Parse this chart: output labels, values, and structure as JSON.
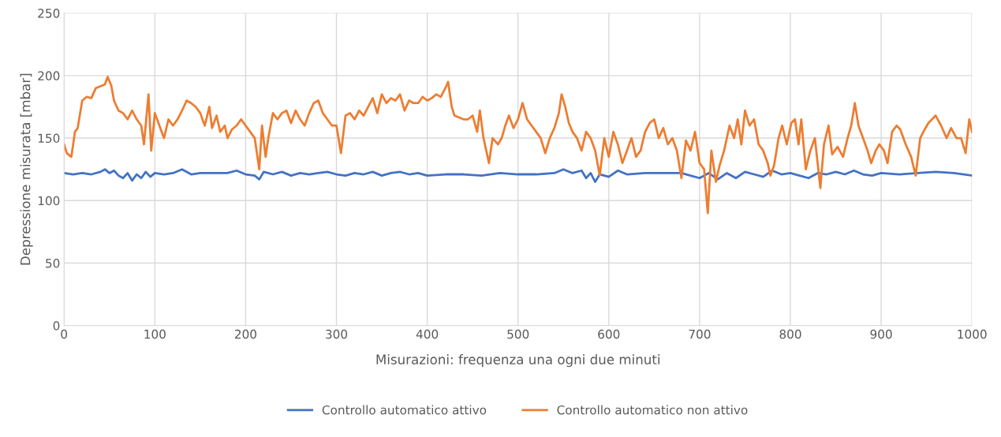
{
  "chart_data": {
    "type": "line",
    "xlabel": "Misurazioni: frequenza una ogni due minuti",
    "ylabel": "Depressione misurata [mbar]",
    "xlim": [
      0,
      1000
    ],
    "xticks": [
      0,
      100,
      200,
      300,
      400,
      500,
      600,
      700,
      800,
      900,
      1000
    ],
    "ylim": [
      0,
      250
    ],
    "yticks": [
      0,
      50,
      100,
      150,
      200,
      250
    ],
    "grid": true,
    "legend": "bottom",
    "marker": "none",
    "line_style": "solid",
    "series": [
      {
        "name": "Controllo automatico attivo",
        "color": "#4472c4",
        "x": [
          0,
          10,
          20,
          30,
          40,
          45,
          50,
          55,
          60,
          65,
          70,
          75,
          80,
          85,
          90,
          95,
          100,
          110,
          120,
          130,
          140,
          150,
          160,
          170,
          180,
          190,
          200,
          210,
          215,
          220,
          230,
          240,
          250,
          260,
          270,
          280,
          290,
          300,
          310,
          320,
          330,
          340,
          350,
          360,
          370,
          380,
          390,
          400,
          420,
          440,
          460,
          480,
          500,
          520,
          540,
          550,
          560,
          570,
          575,
          580,
          585,
          590,
          600,
          610,
          620,
          640,
          660,
          680,
          690,
          700,
          710,
          720,
          730,
          740,
          750,
          760,
          770,
          780,
          790,
          800,
          810,
          820,
          830,
          840,
          850,
          860,
          870,
          880,
          890,
          900,
          920,
          940,
          960,
          980,
          1000
        ],
        "values": [
          122,
          121,
          122,
          121,
          123,
          125,
          122,
          124,
          120,
          118,
          122,
          116,
          121,
          118,
          123,
          119,
          122,
          121,
          122,
          125,
          121,
          122,
          122,
          122,
          122,
          124,
          121,
          120,
          117,
          123,
          121,
          123,
          120,
          122,
          121,
          122,
          123,
          121,
          120,
          122,
          121,
          123,
          120,
          122,
          123,
          121,
          122,
          120,
          121,
          121,
          120,
          122,
          121,
          121,
          122,
          125,
          122,
          124,
          118,
          122,
          115,
          121,
          119,
          124,
          121,
          122,
          122,
          122,
          120,
          118,
          122,
          117,
          122,
          118,
          123,
          121,
          119,
          124,
          121,
          122,
          120,
          118,
          122,
          121,
          123,
          121,
          124,
          121,
          120,
          122,
          121,
          122,
          123,
          122,
          120
        ]
      },
      {
        "name": "Controllo automatico non attivo",
        "color": "#ed7d31",
        "x": [
          0,
          3,
          8,
          12,
          15,
          20,
          25,
          30,
          35,
          45,
          48,
          52,
          55,
          60,
          65,
          70,
          75,
          80,
          85,
          88,
          93,
          96,
          100,
          105,
          110,
          115,
          120,
          125,
          130,
          135,
          140,
          145,
          150,
          155,
          160,
          163,
          168,
          172,
          177,
          180,
          185,
          190,
          195,
          200,
          205,
          210,
          215,
          218,
          222,
          225,
          230,
          235,
          240,
          245,
          250,
          255,
          260,
          265,
          270,
          275,
          280,
          285,
          290,
          295,
          300,
          305,
          310,
          315,
          320,
          325,
          330,
          335,
          340,
          345,
          350,
          355,
          360,
          365,
          370,
          375,
          380,
          385,
          390,
          395,
          400,
          405,
          410,
          415,
          420,
          423,
          427,
          430,
          440,
          445,
          450,
          455,
          458,
          462,
          465,
          468,
          472,
          478,
          482,
          486,
          490,
          495,
          500,
          505,
          510,
          515,
          520,
          525,
          530,
          535,
          540,
          545,
          548,
          552,
          556,
          560,
          565,
          570,
          575,
          580,
          585,
          590,
          595,
          600,
          605,
          610,
          615,
          620,
          625,
          630,
          635,
          640,
          645,
          650,
          655,
          660,
          665,
          670,
          675,
          680,
          685,
          690,
          695,
          700,
          705,
          709,
          713,
          718,
          722,
          727,
          733,
          738,
          742,
          746,
          750,
          755,
          760,
          765,
          770,
          775,
          778,
          782,
          787,
          791,
          796,
          801,
          805,
          809,
          812,
          817,
          822,
          827,
          833,
          837,
          842,
          846,
          852,
          858,
          863,
          867,
          871,
          875,
          880,
          885,
          889,
          894,
          898,
          903,
          907,
          912,
          917,
          921,
          927,
          933,
          938,
          943,
          948,
          952,
          956,
          960,
          966,
          972,
          977,
          983,
          988,
          993,
          997,
          1000
        ],
        "values": [
          145,
          138,
          135,
          155,
          158,
          180,
          183,
          182,
          190,
          193,
          199,
          192,
          180,
          172,
          170,
          165,
          172,
          165,
          160,
          145,
          185,
          140,
          170,
          160,
          150,
          165,
          160,
          165,
          172,
          180,
          178,
          175,
          170,
          160,
          175,
          158,
          168,
          155,
          160,
          150,
          157,
          160,
          165,
          160,
          155,
          150,
          125,
          160,
          135,
          150,
          170,
          165,
          170,
          172,
          162,
          172,
          165,
          160,
          170,
          178,
          180,
          170,
          165,
          160,
          160,
          138,
          168,
          170,
          165,
          172,
          168,
          175,
          182,
          170,
          185,
          178,
          182,
          180,
          185,
          172,
          180,
          178,
          178,
          183,
          180,
          182,
          185,
          183,
          190,
          195,
          175,
          168,
          165,
          165,
          168,
          155,
          172,
          150,
          140,
          130,
          150,
          145,
          150,
          160,
          168,
          158,
          165,
          178,
          165,
          160,
          155,
          150,
          138,
          150,
          158,
          170,
          185,
          175,
          162,
          155,
          150,
          140,
          155,
          150,
          140,
          120,
          150,
          135,
          155,
          145,
          130,
          140,
          150,
          135,
          140,
          155,
          162,
          165,
          150,
          158,
          145,
          150,
          140,
          118,
          148,
          140,
          155,
          130,
          125,
          90,
          140,
          115,
          128,
          140,
          160,
          150,
          165,
          145,
          172,
          160,
          165,
          145,
          140,
          130,
          120,
          128,
          150,
          160,
          145,
          162,
          165,
          145,
          165,
          125,
          140,
          150,
          110,
          145,
          160,
          137,
          143,
          135,
          150,
          160,
          178,
          160,
          150,
          140,
          130,
          140,
          145,
          140,
          130,
          155,
          160,
          157,
          145,
          135,
          120,
          150,
          157,
          162,
          165,
          168,
          160,
          150,
          158,
          150,
          150,
          138,
          165,
          155
        ]
      }
    ]
  }
}
